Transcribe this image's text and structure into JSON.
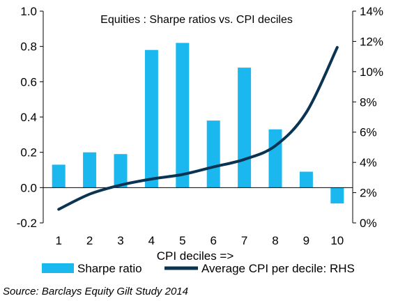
{
  "chart_data": {
    "type": "bar+line",
    "title": "Equities : Sharpe ratios vs. CPI deciles",
    "xlabel": "CPI deciles =>",
    "categories": [
      "1",
      "2",
      "3",
      "4",
      "5",
      "6",
      "7",
      "8",
      "9",
      "10"
    ],
    "series": [
      {
        "name": "Sharpe ratio",
        "type": "bar",
        "axis": "left",
        "color": "#1ab8ee",
        "values": [
          0.13,
          0.2,
          0.19,
          0.78,
          0.82,
          0.38,
          0.68,
          0.33,
          0.09,
          -0.09
        ]
      },
      {
        "name": "Average CPI per decile: RHS",
        "type": "line",
        "axis": "right",
        "color": "#0b3452",
        "values": [
          0.9,
          1.9,
          2.5,
          2.9,
          3.2,
          3.7,
          4.2,
          5.1,
          7.3,
          11.6
        ]
      }
    ],
    "left_axis": {
      "ylim": [
        -0.2,
        1.0
      ],
      "ticks": [
        -0.2,
        0.0,
        0.2,
        0.4,
        0.6,
        0.8,
        1.0
      ],
      "tick_labels": [
        "-0.2",
        "0.0",
        "0.2",
        "0.4",
        "0.6",
        "0.8",
        "1.0"
      ]
    },
    "right_axis": {
      "ylim": [
        0,
        14
      ],
      "ticks": [
        0,
        2,
        4,
        6,
        8,
        10,
        12,
        14
      ],
      "tick_labels": [
        "0%",
        "2%",
        "4%",
        "6%",
        "8%",
        "10%",
        "12%",
        "14%"
      ]
    },
    "grid": false,
    "legend": "bottom"
  },
  "source": "Source: Barclays Equity Gilt Study 2014"
}
